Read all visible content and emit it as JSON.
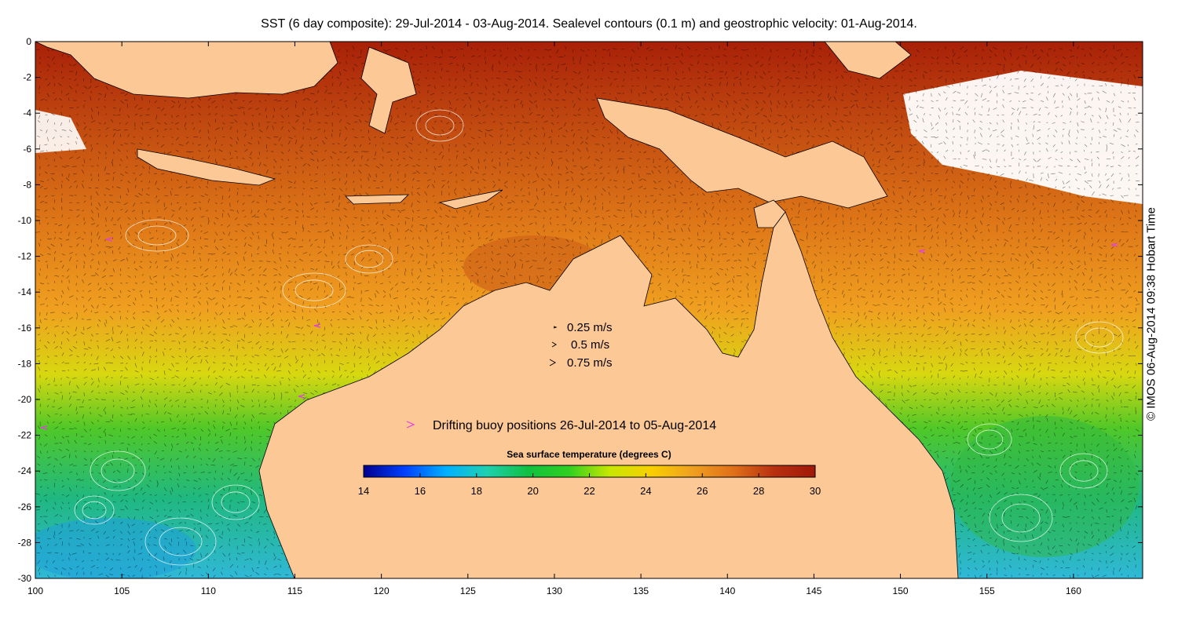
{
  "title": "SST (6 day composite): 29-Jul-2014 - 03-Aug-2014. Sealevel contours (0.1 m) and geostrophic velocity: 01-Aug-2014.",
  "credit": "© IMOS 06-Aug-2014 09:38 Hobart Time",
  "axes": {
    "x_ticks": [
      "100",
      "105",
      "110",
      "115",
      "120",
      "125",
      "130",
      "135",
      "140",
      "145",
      "150",
      "155",
      "160"
    ],
    "y_ticks": [
      "0",
      "-2",
      "-4",
      "-6",
      "-8",
      "-10",
      "-12",
      "-14",
      "-16",
      "-18",
      "-20",
      "-22",
      "-24",
      "-26",
      "-28",
      "-30"
    ],
    "lon_range": [
      100,
      164
    ],
    "lat_range": [
      -30,
      0
    ]
  },
  "velocity_legend": {
    "items": [
      {
        "label": "0.25 m/s",
        "speed": 0.25
      },
      {
        "label": "0.5 m/s",
        "speed": 0.5
      },
      {
        "label": "0.75 m/s",
        "speed": 0.75
      }
    ]
  },
  "buoy_legend": {
    "label": "Drifting buoy positions 26-Jul-2014 to 05-Aug-2014",
    "color": "#e040e0"
  },
  "colorbar": {
    "title": "Sea surface temperature (degrees C)",
    "range": [
      14,
      30
    ],
    "ticks": [
      "14",
      "16",
      "18",
      "20",
      "22",
      "24",
      "26",
      "28",
      "30"
    ],
    "stops": [
      "#00008f",
      "#0040ff",
      "#00b0ff",
      "#20d0b0",
      "#10c040",
      "#30d020",
      "#c8e800",
      "#f8d000",
      "#f0a020",
      "#e07018",
      "#b83010",
      "#a01808"
    ]
  },
  "colors": {
    "land": "#fcc896",
    "ocean_cool": "#38c0c0",
    "ocean_warm": "#c0501a",
    "contour": "#ffffff"
  }
}
